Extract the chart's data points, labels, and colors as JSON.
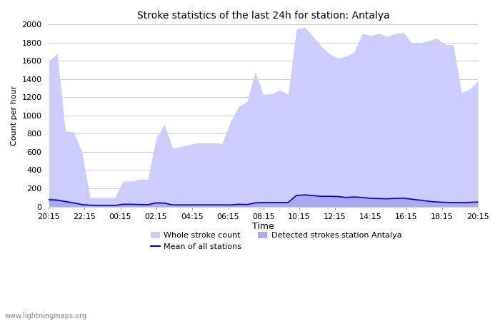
{
  "title": "Stroke statistics of the last 24h for station: Antalya",
  "xlabel": "Time",
  "ylabel": "Count per hour",
  "ylim": [
    0,
    2000
  ],
  "yticks": [
    0,
    200,
    400,
    600,
    800,
    1000,
    1200,
    1400,
    1600,
    1800,
    2000
  ],
  "xtick_labels": [
    "20:15",
    "22:15",
    "00:15",
    "02:15",
    "04:15",
    "06:15",
    "08:15",
    "10:15",
    "12:15",
    "14:15",
    "16:15",
    "18:15",
    "20:15"
  ],
  "watermark": "www.lightningmaps.org",
  "fill_color_whole": "#ccccff",
  "fill_color_detected": "#aaaaee",
  "line_color_mean": "#0000cc",
  "legend_whole": "Whole stroke count",
  "legend_detected": "Detected strokes station Antalya",
  "legend_mean": "Mean of all stations",
  "whole_stroke": [
    1600,
    1680,
    830,
    820,
    600,
    100,
    100,
    100,
    100,
    280,
    280,
    300,
    300,
    750,
    900,
    640,
    660,
    680,
    700,
    700,
    700,
    690,
    930,
    1100,
    1150,
    1480,
    1230,
    1240,
    1280,
    1230,
    1950,
    1970,
    1870,
    1760,
    1680,
    1630,
    1650,
    1700,
    1900,
    1880,
    1900,
    1870,
    1900,
    1910,
    1790,
    1800,
    1820,
    1850,
    1780,
    1780,
    1250,
    1290,
    1380
  ],
  "detected_stroke": [
    100,
    90,
    70,
    50,
    25,
    18,
    15,
    15,
    15,
    30,
    30,
    28,
    25,
    50,
    45,
    22,
    22,
    22,
    22,
    22,
    22,
    22,
    22,
    30,
    28,
    45,
    48,
    48,
    48,
    48,
    128,
    132,
    125,
    118,
    118,
    115,
    105,
    110,
    105,
    95,
    92,
    90,
    95,
    100,
    85,
    75,
    62,
    55,
    50,
    48,
    48,
    50,
    55
  ],
  "mean_all": [
    75,
    70,
    55,
    40,
    22,
    15,
    12,
    12,
    12,
    25,
    25,
    22,
    20,
    40,
    38,
    18,
    18,
    18,
    18,
    18,
    18,
    18,
    18,
    25,
    22,
    40,
    45,
    45,
    45,
    45,
    122,
    128,
    120,
    112,
    112,
    110,
    100,
    105,
    100,
    90,
    88,
    85,
    90,
    92,
    80,
    70,
    58,
    50,
    46,
    44,
    44,
    46,
    50
  ]
}
